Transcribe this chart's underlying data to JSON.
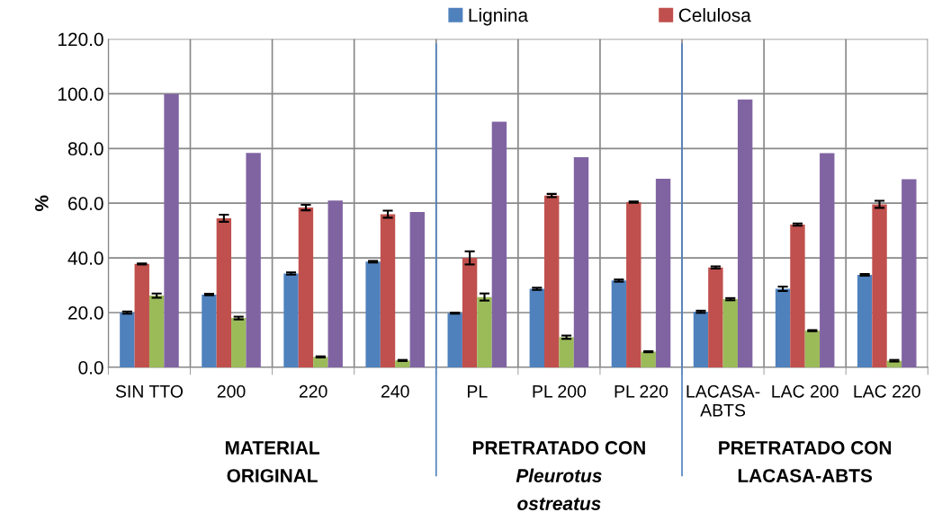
{
  "chart_data": {
    "type": "bar",
    "ylabel": "%",
    "categories": [
      "SIN TTO",
      "200",
      "220",
      "240",
      "PL",
      "PL 200",
      "PL 220",
      "LACASA-\nABTS",
      "LAC 200",
      "LAC 220"
    ],
    "series": [
      {
        "name": "Lignina",
        "color": "#4f81bd",
        "values": [
          20.0,
          26.6,
          34.3,
          38.6,
          19.8,
          28.7,
          31.7,
          20.3,
          28.7,
          33.8
        ],
        "errors": [
          0.4,
          0.3,
          0.4,
          0.3,
          0.2,
          0.4,
          0.4,
          0.4,
          0.8,
          0.3
        ]
      },
      {
        "name": "Celulosa",
        "color": "#c0504d",
        "values": [
          37.8,
          54.5,
          58.4,
          56.0,
          40.0,
          62.8,
          60.4,
          36.5,
          52.2,
          59.6
        ],
        "errors": [
          0.2,
          1.3,
          1.0,
          1.3,
          2.4,
          0.6,
          0.2,
          0.4,
          0.4,
          1.3
        ]
      },
      {
        "color": "#9bbb59",
        "values": [
          26.2,
          18.0,
          3.8,
          2.5,
          25.7,
          11.0,
          5.7,
          24.9,
          13.4,
          2.4
        ],
        "errors": [
          0.8,
          0.5,
          0.2,
          0.2,
          1.3,
          0.6,
          0.2,
          0.4,
          0.2,
          0.3
        ]
      },
      {
        "color": "#8064a2",
        "values": [
          100.0,
          78.4,
          61.0,
          56.8,
          89.8,
          76.8,
          68.9,
          97.9,
          78.3,
          68.8
        ]
      }
    ],
    "ylim": [
      0,
      120
    ],
    "yticks": [
      {
        "value": 0,
        "label": "0.0"
      },
      {
        "value": 20,
        "label": "20.0"
      },
      {
        "value": 40,
        "label": "40.0"
      },
      {
        "value": 60,
        "label": "60.0"
      },
      {
        "value": 80,
        "label": "80.0"
      },
      {
        "value": 100,
        "label": "100.0"
      },
      {
        "value": 120,
        "label": "120.0"
      }
    ],
    "annotations": [
      "MATERIAL\nORIGINAL",
      "PRETRATADO CON\nPleurotus\nostreatus",
      "PRETRATADO CON\nLACASA-ABTS"
    ],
    "grid": true,
    "legend": "top"
  }
}
